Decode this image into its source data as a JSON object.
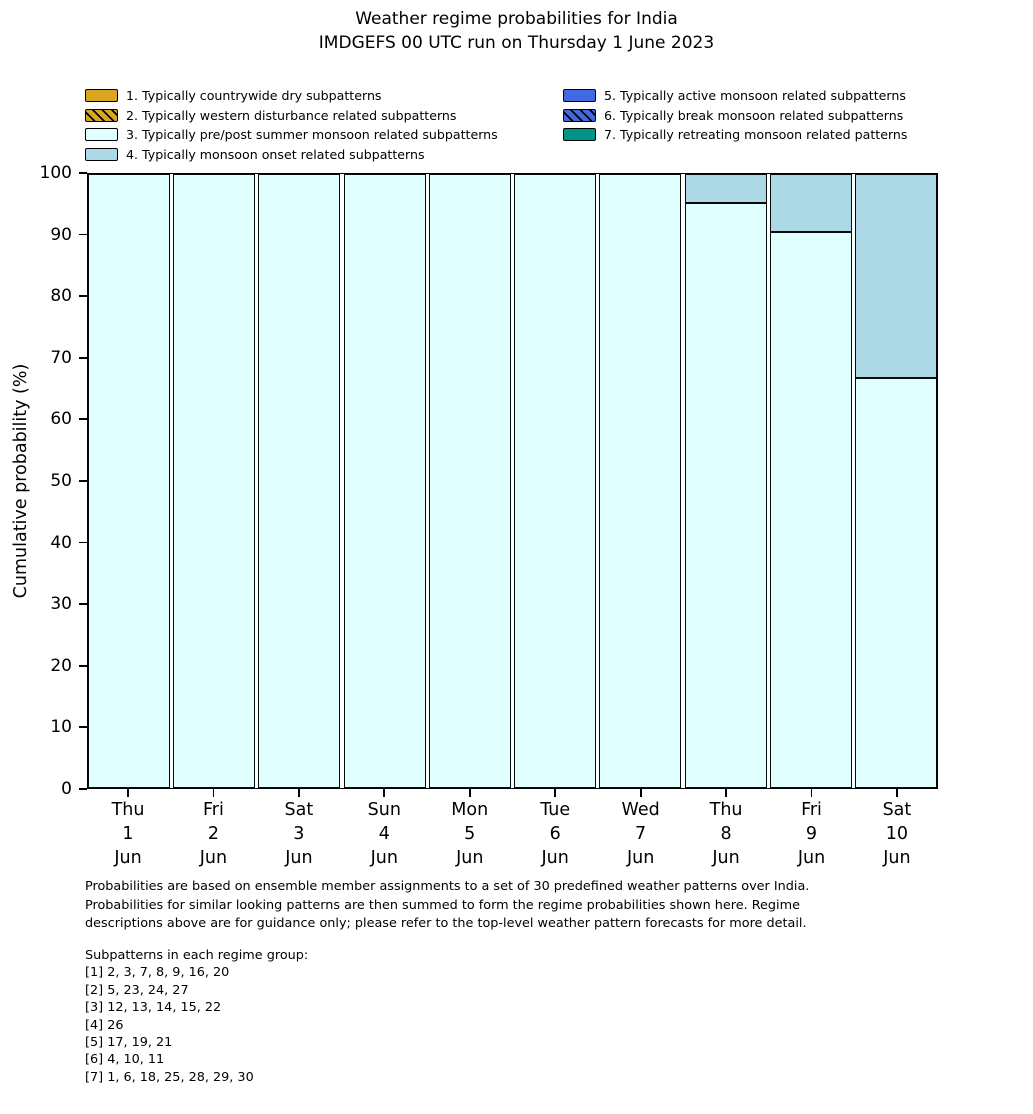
{
  "title": {
    "line1": "Weather regime probabilities for India",
    "line2": "IMDGEFS 00 UTC run on Thursday 1 June 2023"
  },
  "chart_data": {
    "type": "bar",
    "stacked": true,
    "title": "Weather regime probabilities for India",
    "subtitle": "IMDGEFS 00 UTC run on Thursday 1 June 2023",
    "ylabel": "Cumulative probability (%)",
    "ylim": [
      0,
      100
    ],
    "yticks": [
      0,
      10,
      20,
      30,
      40,
      50,
      60,
      70,
      80,
      90,
      100
    ],
    "grid": false,
    "legend_position": "top-left, two columns, no frame",
    "categories": [
      {
        "day": "Thu",
        "date": "1",
        "month": "Jun"
      },
      {
        "day": "Fri",
        "date": "2",
        "month": "Jun"
      },
      {
        "day": "Sat",
        "date": "3",
        "month": "Jun"
      },
      {
        "day": "Sun",
        "date": "4",
        "month": "Jun"
      },
      {
        "day": "Mon",
        "date": "5",
        "month": "Jun"
      },
      {
        "day": "Tue",
        "date": "6",
        "month": "Jun"
      },
      {
        "day": "Wed",
        "date": "7",
        "month": "Jun"
      },
      {
        "day": "Thu",
        "date": "8",
        "month": "Jun"
      },
      {
        "day": "Fri",
        "date": "9",
        "month": "Jun"
      },
      {
        "day": "Sat",
        "date": "10",
        "month": "Jun"
      }
    ],
    "series": [
      {
        "name": "1. Typically countrywide dry subpatterns",
        "color": "#DAA520",
        "hatch": false,
        "values": [
          0,
          0,
          0,
          0,
          0,
          0,
          0,
          0,
          0,
          0
        ]
      },
      {
        "name": "2. Typically western disturbance related subpatterns",
        "color": "#DAA520",
        "hatch": true,
        "values": [
          0,
          0,
          0,
          0,
          0,
          0,
          0,
          0,
          0,
          0
        ]
      },
      {
        "name": "3. Typically pre/post summer monsoon related subpatterns",
        "color": "#E0FFFF",
        "hatch": false,
        "values": [
          100,
          100,
          100,
          100,
          100,
          100,
          100,
          95.2,
          90.5,
          66.7
        ]
      },
      {
        "name": "4. Typically monsoon onset related subpatterns",
        "color": "#ADD8E6",
        "hatch": false,
        "values": [
          0,
          0,
          0,
          0,
          0,
          0,
          0,
          4.8,
          9.5,
          33.3
        ]
      },
      {
        "name": "5. Typically active monsoon related subpatterns",
        "color": "#4169E1",
        "hatch": false,
        "values": [
          0,
          0,
          0,
          0,
          0,
          0,
          0,
          0,
          0,
          0
        ]
      },
      {
        "name": "6. Typically break monsoon related subpatterns",
        "color": "#4169E1",
        "hatch": true,
        "values": [
          0,
          0,
          0,
          0,
          0,
          0,
          0,
          0,
          0,
          0
        ]
      },
      {
        "name": "7. Typically retreating monsoon related patterns",
        "color": "#009187",
        "hatch": false,
        "values": [
          0,
          0,
          0,
          0,
          0,
          0,
          0,
          0,
          0,
          0
        ]
      }
    ]
  },
  "footer": {
    "lines": [
      "Probabilities are based on ensemble member assignments to a set of 30 predefined weather patterns over India.",
      "Probabilities for similar looking patterns are then summed to form the regime probabilities shown here. Regime",
      "descriptions above are for guidance only; please refer to the top-level weather pattern forecasts for more detail."
    ]
  },
  "subpatterns": {
    "heading": "Subpatterns in each regime group:",
    "lines": [
      "[1] 2, 3, 7, 8, 9, 16, 20",
      "[2] 5, 23, 24, 27",
      "[3] 12, 13, 14, 15, 22",
      "[4] 26",
      "[5] 17, 19, 21",
      "[6] 4, 10, 11",
      "[7] 1, 6, 18, 25, 28, 29, 30"
    ]
  }
}
